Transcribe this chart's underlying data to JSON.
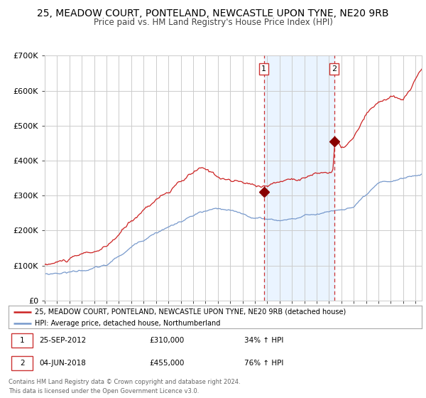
{
  "title1": "25, MEADOW COURT, PONTELAND, NEWCASTLE UPON TYNE, NE20 9RB",
  "title2": "Price paid vs. HM Land Registry's House Price Index (HPI)",
  "legend_red": "25, MEADOW COURT, PONTELAND, NEWCASTLE UPON TYNE, NE20 9RB (detached house)",
  "legend_blue": "HPI: Average price, detached house, Northumberland",
  "purchase1_date": "25-SEP-2012",
  "purchase1_price": 310000,
  "purchase1_hpi": "34% ↑ HPI",
  "purchase2_date": "04-JUN-2018",
  "purchase2_price": 455000,
  "purchase2_hpi": "76% ↑ HPI",
  "purchase1_x": 2012.73,
  "purchase2_x": 2018.42,
  "footer": "Contains HM Land Registry data © Crown copyright and database right 2024.\nThis data is licensed under the Open Government Licence v3.0.",
  "ylim": [
    0,
    700000
  ],
  "xlim_start": 1995,
  "xlim_end": 2025.5,
  "background_color": "#ffffff",
  "plot_bg_color": "#ffffff",
  "grid_color": "#cccccc",
  "red_color": "#cc2222",
  "blue_color": "#7799cc",
  "shade_color": "#ddeeff",
  "marker_color": "#880000",
  "dashed_line_color": "#cc3333",
  "title1_fontsize": 10,
  "title2_fontsize": 8.5,
  "ytick_fontsize": 8,
  "xtick_fontsize": 6.5,
  "legend_fontsize": 7,
  "info_fontsize": 7.5,
  "footer_fontsize": 6
}
